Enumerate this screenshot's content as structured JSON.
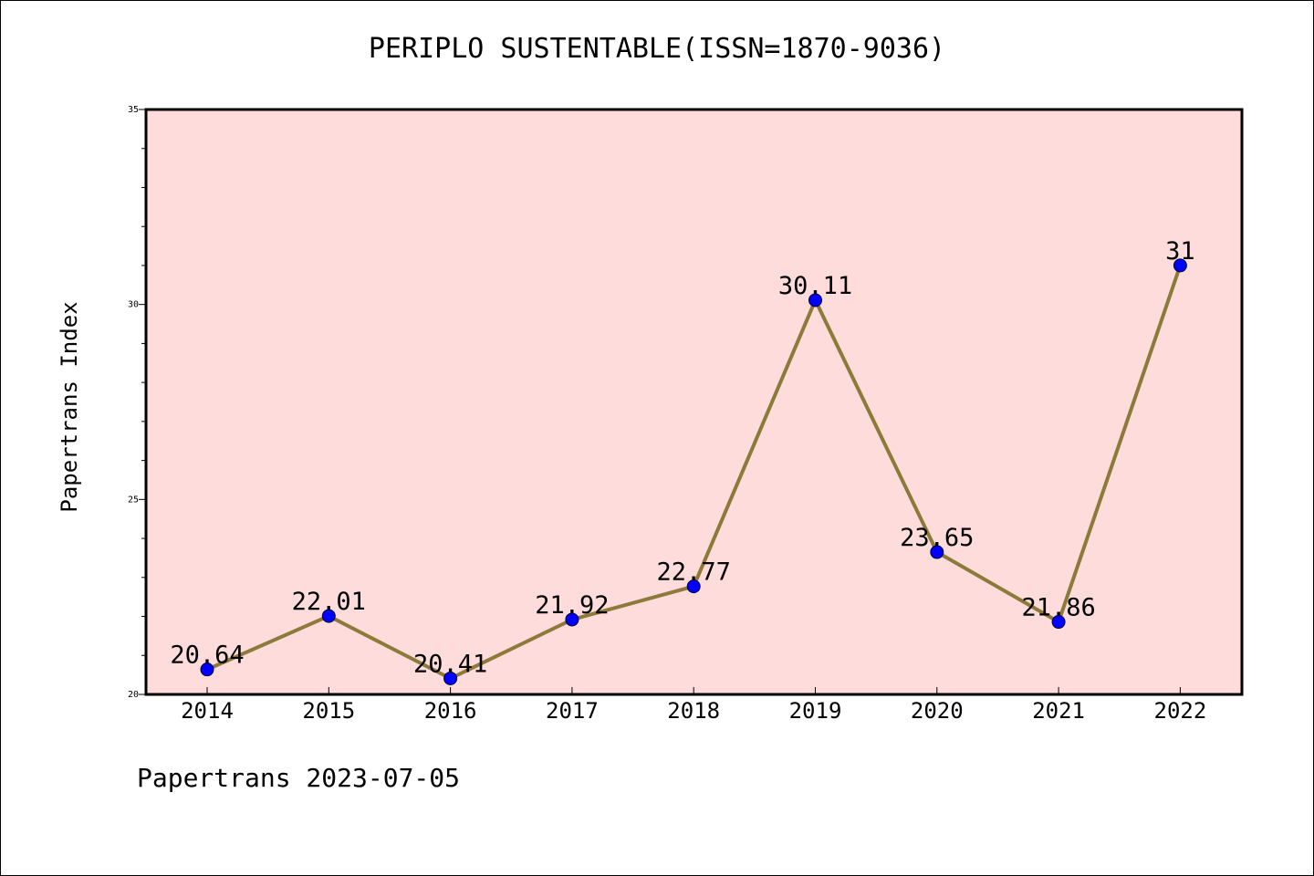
{
  "chart_data": {
    "type": "line",
    "title": "PERIPLO SUSTENTABLE(ISSN=1870-9036)",
    "xlabel": "",
    "ylabel": "Papertrans Index",
    "categories": [
      "2014",
      "2015",
      "2016",
      "2017",
      "2018",
      "2019",
      "2020",
      "2021",
      "2022"
    ],
    "series": [
      {
        "values": [
          20.64,
          22.01,
          20.41,
          21.92,
          22.77,
          30.11,
          23.65,
          21.86,
          31
        ],
        "labels": [
          "20.64",
          "22.01",
          "20.41",
          "21.92",
          "22.77",
          "30.11",
          "23.65",
          "21.86",
          "31"
        ],
        "line_color": "#8c7a3a",
        "marker_color": "#0000ff"
      }
    ],
    "ylim": [
      20,
      35
    ],
    "yticks": [
      "20",
      "25",
      "30",
      "35"
    ],
    "grid": false,
    "legend": "none",
    "plot_background": "#fedcdb"
  },
  "footer": {
    "note": "Papertrans 2023-07-05"
  }
}
